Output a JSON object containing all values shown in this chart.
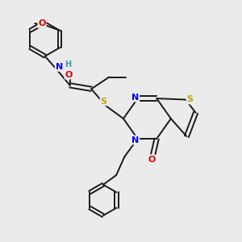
{
  "bg_color": "#ebebeb",
  "bond_color": "#1a1a1a",
  "bond_width": 1.4,
  "atom_colors": {
    "N": "#0000ee",
    "O": "#dd0000",
    "S": "#bbaa00",
    "H": "#3399aa",
    "C": "#1a1a1a"
  },
  "figsize": [
    3.0,
    3.0
  ],
  "dpi": 100
}
